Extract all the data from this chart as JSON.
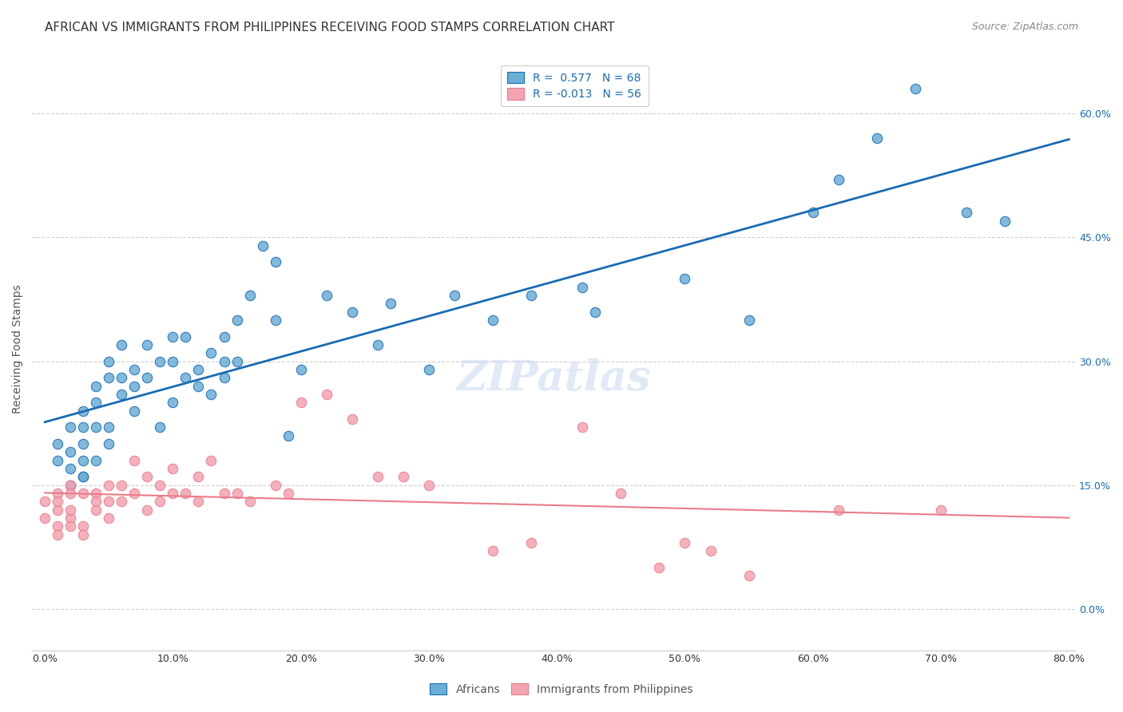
{
  "title": "AFRICAN VS IMMIGRANTS FROM PHILIPPINES RECEIVING FOOD STAMPS CORRELATION CHART",
  "source": "Source: ZipAtlas.com",
  "ylabel": "Receiving Food Stamps",
  "xlim": [
    0.0,
    0.8
  ],
  "ylim": [
    -0.05,
    0.68
  ],
  "africans_R": 0.577,
  "africans_N": 68,
  "philippines_R": -0.013,
  "philippines_N": 56,
  "legend_labels": [
    "Africans",
    "Immigrants from Philippines"
  ],
  "blue_color": "#6baed6",
  "pink_color": "#f4a4b0",
  "blue_line_color": "#1a6bb5",
  "pink_line_color": "#e87c8a",
  "watermark": "ZIPatlas",
  "background_color": "#ffffff",
  "grid_color": "#d0d0d0",
  "africans_x": [
    0.01,
    0.01,
    0.02,
    0.02,
    0.02,
    0.02,
    0.03,
    0.03,
    0.03,
    0.03,
    0.03,
    0.03,
    0.04,
    0.04,
    0.04,
    0.04,
    0.05,
    0.05,
    0.05,
    0.05,
    0.06,
    0.06,
    0.06,
    0.07,
    0.07,
    0.07,
    0.08,
    0.08,
    0.09,
    0.09,
    0.1,
    0.1,
    0.1,
    0.11,
    0.11,
    0.12,
    0.12,
    0.13,
    0.13,
    0.14,
    0.14,
    0.14,
    0.15,
    0.15,
    0.16,
    0.17,
    0.18,
    0.18,
    0.19,
    0.2,
    0.22,
    0.24,
    0.26,
    0.27,
    0.3,
    0.32,
    0.35,
    0.38,
    0.42,
    0.43,
    0.5,
    0.55,
    0.6,
    0.62,
    0.65,
    0.68,
    0.72,
    0.75
  ],
  "africans_y": [
    0.2,
    0.18,
    0.17,
    0.19,
    0.22,
    0.15,
    0.18,
    0.16,
    0.2,
    0.22,
    0.24,
    0.16,
    0.22,
    0.25,
    0.27,
    0.18,
    0.28,
    0.3,
    0.22,
    0.2,
    0.32,
    0.28,
    0.26,
    0.29,
    0.24,
    0.27,
    0.28,
    0.32,
    0.3,
    0.22,
    0.3,
    0.33,
    0.25,
    0.28,
    0.33,
    0.29,
    0.27,
    0.26,
    0.31,
    0.3,
    0.33,
    0.28,
    0.35,
    0.3,
    0.38,
    0.44,
    0.42,
    0.35,
    0.21,
    0.29,
    0.38,
    0.36,
    0.32,
    0.37,
    0.29,
    0.38,
    0.35,
    0.38,
    0.39,
    0.36,
    0.4,
    0.35,
    0.48,
    0.52,
    0.57,
    0.63,
    0.48,
    0.47
  ],
  "philippines_x": [
    0.0,
    0.0,
    0.01,
    0.01,
    0.01,
    0.01,
    0.01,
    0.02,
    0.02,
    0.02,
    0.02,
    0.02,
    0.03,
    0.03,
    0.03,
    0.04,
    0.04,
    0.04,
    0.05,
    0.05,
    0.05,
    0.06,
    0.06,
    0.07,
    0.07,
    0.08,
    0.08,
    0.09,
    0.09,
    0.1,
    0.1,
    0.11,
    0.12,
    0.12,
    0.13,
    0.14,
    0.15,
    0.16,
    0.18,
    0.19,
    0.2,
    0.22,
    0.24,
    0.26,
    0.28,
    0.3,
    0.35,
    0.38,
    0.42,
    0.45,
    0.48,
    0.5,
    0.52,
    0.55,
    0.62,
    0.7
  ],
  "philippines_y": [
    0.13,
    0.11,
    0.14,
    0.12,
    0.1,
    0.09,
    0.13,
    0.15,
    0.11,
    0.14,
    0.1,
    0.12,
    0.1,
    0.14,
    0.09,
    0.14,
    0.13,
    0.12,
    0.15,
    0.13,
    0.11,
    0.15,
    0.13,
    0.14,
    0.18,
    0.16,
    0.12,
    0.15,
    0.13,
    0.14,
    0.17,
    0.14,
    0.16,
    0.13,
    0.18,
    0.14,
    0.14,
    0.13,
    0.15,
    0.14,
    0.25,
    0.26,
    0.23,
    0.16,
    0.16,
    0.15,
    0.07,
    0.08,
    0.22,
    0.14,
    0.05,
    0.08,
    0.07,
    0.04,
    0.12,
    0.12
  ],
  "title_fontsize": 11,
  "source_fontsize": 9,
  "axis_label_fontsize": 10,
  "tick_fontsize": 9,
  "legend_fontsize": 10
}
